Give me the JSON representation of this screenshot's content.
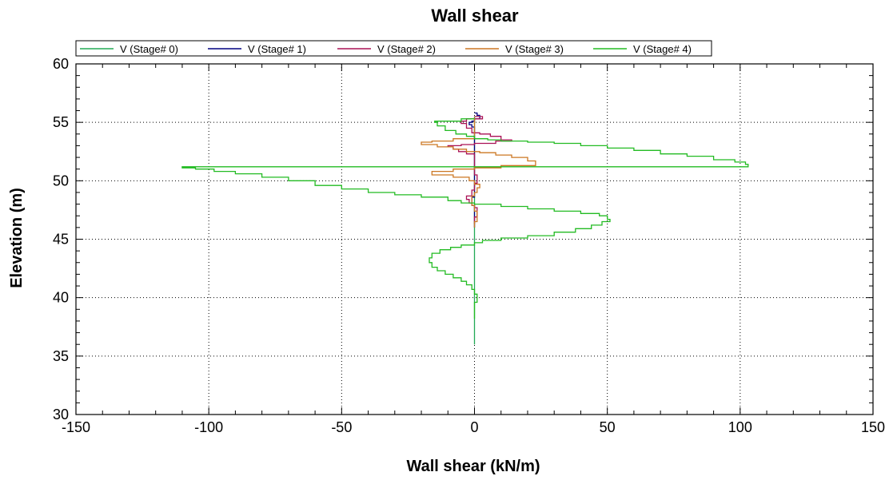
{
  "chart_data": {
    "type": "line",
    "title": "Wall shear",
    "xlabel": "Wall shear (kN/m)",
    "ylabel": "Elevation (m)",
    "xlim": [
      -150,
      150
    ],
    "ylim": [
      30,
      60
    ],
    "xticks": [
      -150,
      -100,
      -50,
      0,
      50,
      100,
      150
    ],
    "yticks": [
      30,
      35,
      40,
      45,
      50,
      55,
      60
    ],
    "grid": true,
    "legend": "top",
    "series": [
      {
        "name": "V (Stage# 0)",
        "color": "#22aa55",
        "points": [
          [
            0,
            55.5
          ],
          [
            0,
            36.0
          ]
        ]
      },
      {
        "name": "V (Stage# 1)",
        "color": "#000080",
        "points": [
          [
            0,
            55.8
          ],
          [
            1,
            55.6
          ],
          [
            2,
            55.3
          ],
          [
            0,
            55.1
          ],
          [
            -1,
            55.0
          ],
          [
            -2,
            54.8
          ],
          [
            -1,
            54.6
          ],
          [
            0,
            54.4
          ],
          [
            0,
            51.0
          ],
          [
            0,
            48.6
          ],
          [
            -1,
            48.2
          ],
          [
            -1,
            47.9
          ],
          [
            0,
            47.6
          ],
          [
            0,
            46.0
          ]
        ]
      },
      {
        "name": "V (Stage# 2)",
        "color": "#aa1155",
        "points": [
          [
            0,
            55.5
          ],
          [
            3,
            55.3
          ],
          [
            -3,
            55.1
          ],
          [
            -5,
            54.9
          ],
          [
            -3,
            54.5
          ],
          [
            -1,
            54.1
          ],
          [
            2,
            54.0
          ],
          [
            6,
            53.8
          ],
          [
            10,
            53.5
          ],
          [
            14,
            53.4
          ],
          [
            8,
            53.2
          ],
          [
            0,
            53.1
          ],
          [
            -5,
            53.0
          ],
          [
            -10,
            52.9
          ],
          [
            -8,
            52.7
          ],
          [
            -6,
            52.5
          ],
          [
            -3,
            52.3
          ],
          [
            0,
            52.1
          ],
          [
            0,
            50.5
          ],
          [
            1,
            49.8
          ],
          [
            0,
            49.2
          ],
          [
            -1,
            48.7
          ],
          [
            -3,
            48.4
          ],
          [
            -2,
            48.1
          ],
          [
            -1,
            47.9
          ],
          [
            0,
            47.7
          ],
          [
            1,
            47.4
          ],
          [
            1,
            46.9
          ],
          [
            0,
            46.3
          ]
        ]
      },
      {
        "name": "V (Stage# 3)",
        "color": "#cc7722",
        "points": [
          [
            0,
            55.4
          ],
          [
            0,
            53.6
          ],
          [
            -8,
            53.4
          ],
          [
            -16,
            53.3
          ],
          [
            -20,
            53.1
          ],
          [
            -14,
            52.9
          ],
          [
            -8,
            52.7
          ],
          [
            -3,
            52.5
          ],
          [
            2,
            52.4
          ],
          [
            8,
            52.2
          ],
          [
            14,
            52.0
          ],
          [
            20,
            51.7
          ],
          [
            23,
            51.3
          ],
          [
            10,
            51.1
          ],
          [
            0,
            51.0
          ],
          [
            -8,
            50.8
          ],
          [
            -16,
            50.5
          ],
          [
            -8,
            50.3
          ],
          [
            -2,
            50.0
          ],
          [
            0,
            49.7
          ],
          [
            2,
            49.4
          ],
          [
            1,
            49.0
          ],
          [
            0,
            48.7
          ],
          [
            -1,
            48.3
          ],
          [
            -1,
            47.9
          ],
          [
            0,
            47.4
          ],
          [
            1,
            47.0
          ],
          [
            1,
            46.5
          ],
          [
            0,
            46.0
          ]
        ]
      },
      {
        "name": "V (Stage# 4)",
        "color": "#22bb22",
        "points": [
          [
            0,
            55.3
          ],
          [
            -5,
            55.1
          ],
          [
            -15,
            55.0
          ],
          [
            -14,
            54.7
          ],
          [
            -11,
            54.3
          ],
          [
            -7,
            54.0
          ],
          [
            -3,
            53.8
          ],
          [
            0,
            53.6
          ],
          [
            5,
            53.5
          ],
          [
            10,
            53.4
          ],
          [
            20,
            53.3
          ],
          [
            30,
            53.2
          ],
          [
            40,
            53.0
          ],
          [
            50,
            52.8
          ],
          [
            60,
            52.6
          ],
          [
            70,
            52.3
          ],
          [
            80,
            52.1
          ],
          [
            90,
            51.8
          ],
          [
            98,
            51.6
          ],
          [
            102,
            51.4
          ],
          [
            103,
            51.2
          ],
          [
            -110,
            51.1
          ],
          [
            -105,
            51.0
          ],
          [
            -98,
            50.8
          ],
          [
            -90,
            50.6
          ],
          [
            -80,
            50.3
          ],
          [
            -70,
            50.0
          ],
          [
            -60,
            49.6
          ],
          [
            -50,
            49.3
          ],
          [
            -40,
            49.0
          ],
          [
            -30,
            48.8
          ],
          [
            -20,
            48.6
          ],
          [
            -10,
            48.3
          ],
          [
            -5,
            48.1
          ],
          [
            0,
            48.0
          ],
          [
            10,
            47.8
          ],
          [
            20,
            47.6
          ],
          [
            30,
            47.4
          ],
          [
            40,
            47.2
          ],
          [
            47,
            47.0
          ],
          [
            50,
            46.7
          ],
          [
            51,
            46.5
          ],
          [
            48,
            46.2
          ],
          [
            44,
            45.9
          ],
          [
            38,
            45.6
          ],
          [
            30,
            45.3
          ],
          [
            20,
            45.1
          ],
          [
            10,
            44.9
          ],
          [
            3,
            44.7
          ],
          [
            0,
            44.5
          ],
          [
            -5,
            44.3
          ],
          [
            -9,
            44.1
          ],
          [
            -13,
            43.8
          ],
          [
            -16,
            43.4
          ],
          [
            -17,
            43.0
          ],
          [
            -16,
            42.6
          ],
          [
            -14,
            42.3
          ],
          [
            -11,
            42.0
          ],
          [
            -8,
            41.7
          ],
          [
            -5,
            41.4
          ],
          [
            -3,
            41.1
          ],
          [
            -1,
            40.7
          ],
          [
            0,
            40.3
          ],
          [
            1,
            39.6
          ],
          [
            0,
            39.0
          ],
          [
            0,
            38.2
          ]
        ]
      }
    ]
  }
}
